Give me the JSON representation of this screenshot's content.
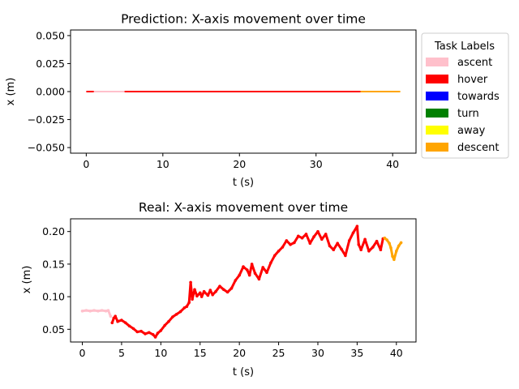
{
  "legend": {
    "title": "Task Labels",
    "placement": "right of top chart",
    "items": [
      {
        "label": "ascent",
        "color": "#ffc0cb"
      },
      {
        "label": "hover",
        "color": "#ff0000"
      },
      {
        "label": "towards",
        "color": "#0000ff"
      },
      {
        "label": "turn",
        "color": "#008000"
      },
      {
        "label": "away",
        "color": "#ffff00"
      },
      {
        "label": "descent",
        "color": "#ffa500"
      }
    ]
  },
  "chart_data": [
    {
      "type": "line",
      "title": "Prediction: X-axis movement over time",
      "xlabel": "t (s)",
      "ylabel": "x (m)",
      "xlim": [
        -2.05,
        43.05
      ],
      "ylim": [
        -0.055,
        0.055
      ],
      "xticks": [
        0,
        10,
        20,
        30,
        40
      ],
      "xtick_labels": [
        "0",
        "10",
        "20",
        "30",
        "40"
      ],
      "yticks": [
        -0.05,
        -0.025,
        0,
        0.025,
        0.05
      ],
      "ytick_labels": [
        "−0.050",
        "−0.025",
        "0.000",
        "0.025",
        "0.050"
      ],
      "grid": false,
      "segments": [
        {
          "label": "hover",
          "color": "#ff0000",
          "x": [
            0,
            1
          ],
          "y": [
            0,
            0
          ]
        },
        {
          "label": "ascent",
          "color": "#ffc0cb",
          "x": [
            1,
            5
          ],
          "y": [
            0,
            0
          ]
        },
        {
          "label": "hover",
          "color": "#ff0000",
          "x": [
            5,
            35.8
          ],
          "y": [
            0,
            0
          ]
        },
        {
          "label": "descent",
          "color": "#ffa500",
          "x": [
            35.8,
            41
          ],
          "y": [
            0,
            0
          ]
        }
      ]
    },
    {
      "type": "scatter",
      "title": "Real: X-axis movement over time",
      "xlabel": "t (s)",
      "ylabel": "x (m)",
      "xlim": [
        -1.5,
        42.5
      ],
      "ylim": [
        0.0305,
        0.2195
      ],
      "xticks": [
        0,
        5,
        10,
        15,
        20,
        25,
        30,
        35,
        40
      ],
      "xtick_labels": [
        "0",
        "5",
        "10",
        "15",
        "20",
        "25",
        "30",
        "35",
        "40"
      ],
      "yticks": [
        0.05,
        0.1,
        0.15,
        0.2
      ],
      "ytick_labels": [
        "0.05",
        "0.10",
        "0.15",
        "0.20"
      ],
      "grid": false,
      "series": [
        {
          "label": "ascent",
          "color": "#ffc0cb",
          "x": [
            0,
            0.5,
            1,
            1.5,
            2,
            2.5,
            3,
            3.3,
            3.6
          ],
          "y": [
            0.078,
            0.079,
            0.078,
            0.079,
            0.078,
            0.079,
            0.078,
            0.079,
            0.07
          ]
        },
        {
          "label": "hover",
          "color": "#ff0000",
          "x": [
            3.8,
            4,
            4.2,
            4.5,
            5,
            5.5,
            6,
            6.5,
            7,
            7.5,
            8,
            8.5,
            9,
            9.3,
            9.6,
            10,
            10.5,
            11,
            11.5,
            12,
            12.5,
            13,
            13.3,
            13.6,
            13.8,
            14,
            14.3,
            14.6,
            15,
            15.2,
            15.5,
            16,
            16.3,
            16.6,
            17,
            17.5,
            18,
            18.5,
            19,
            19.5,
            20,
            20.5,
            21,
            21.3,
            21.6,
            22,
            22.5,
            23,
            23.5,
            24,
            24.5,
            25,
            25.5,
            26,
            26.5,
            27,
            27.5,
            28,
            28.5,
            29,
            29.5,
            30,
            30.5,
            31,
            31.5,
            32,
            32.5,
            33,
            33.5,
            34,
            34.5,
            35,
            35.2,
            35.5,
            36,
            36.5,
            37,
            37.5,
            38,
            38.3
          ],
          "y": [
            0.06,
            0.067,
            0.07,
            0.062,
            0.064,
            0.06,
            0.055,
            0.051,
            0.046,
            0.047,
            0.043,
            0.045,
            0.042,
            0.038,
            0.044,
            0.048,
            0.056,
            0.062,
            0.069,
            0.073,
            0.077,
            0.083,
            0.085,
            0.091,
            0.122,
            0.096,
            0.111,
            0.101,
            0.106,
            0.1,
            0.108,
            0.102,
            0.11,
            0.103,
            0.108,
            0.116,
            0.111,
            0.107,
            0.113,
            0.125,
            0.133,
            0.146,
            0.141,
            0.133,
            0.15,
            0.136,
            0.127,
            0.145,
            0.137,
            0.152,
            0.163,
            0.17,
            0.176,
            0.186,
            0.18,
            0.183,
            0.193,
            0.19,
            0.196,
            0.182,
            0.192,
            0.2,
            0.188,
            0.196,
            0.178,
            0.172,
            0.182,
            0.173,
            0.163,
            0.186,
            0.198,
            0.208,
            0.18,
            0.172,
            0.188,
            0.17,
            0.176,
            0.185,
            0.172,
            0.189
          ]
        },
        {
          "label": "descent",
          "color": "#ffa500",
          "x": [
            38.5,
            38.8,
            39.1,
            39.3,
            39.5,
            39.7,
            40,
            40.3,
            40.6
          ],
          "y": [
            0.19,
            0.187,
            0.182,
            0.175,
            0.162,
            0.157,
            0.17,
            0.178,
            0.183
          ]
        }
      ]
    }
  ]
}
